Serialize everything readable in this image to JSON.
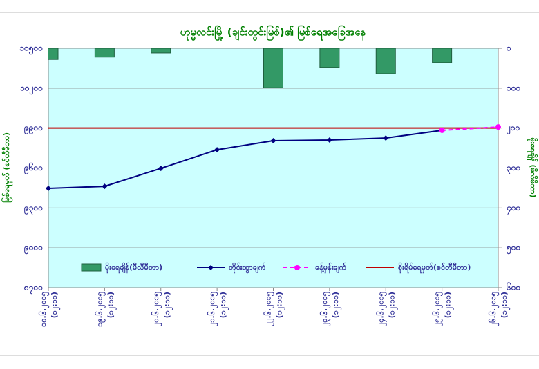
{
  "chart_data": {
    "type": "line",
    "title": "ဟုမ္မလင်းမြို့ (ချင်းတွင်းမြစ်)၏ မြစ်ရေအခြေအနေ",
    "y_label": "မြစ်ရေမှတ် (စင်တီမီတာ)",
    "y2_label": "မိုးရေချိန် (မီလီမီတာ)",
    "categories": [
      "၁၈.၆.၂၀၁၅",
      "၁၉.၆.၂၀၁၅",
      "၂၀.၆.၂၀၁၅",
      "၂၁.၆.၂၀၁၅",
      "၂၂.၆.၂၀၁၅",
      "၂၃.၆.၂၀၁၅",
      "၂၄.၆.၂၀၁၅",
      "၂၅.၆.၂၀၁၅",
      "၂၆.၆.၂၀၁၅"
    ],
    "times": [
      "(၁၂:၀၀)",
      "(၁၂:၀၀)",
      "(၁၂:၀၀)",
      "(၁၂:၀၀)",
      "(၁၂:၀၀)",
      "(၁၂:၀၀)",
      "(၁၂:၀၀)",
      "(၁၂:၀၀)",
      "(၁၂:၀၀)"
    ],
    "series": [
      {
        "name": "မိုးရေချိန်(မီလီမီတာ)",
        "type": "bar",
        "axis": "y2",
        "color": "#339966",
        "values": [
          28,
          22,
          12,
          null,
          99,
          48,
          64,
          36,
          null
        ]
      },
      {
        "name": "တိုင်းထွာချက်",
        "type": "line",
        "color": "#000080",
        "marker": "diamond",
        "values": [
          9447,
          9462,
          9597,
          9737,
          9805,
          9810,
          9825,
          9883,
          null
        ]
      },
      {
        "name": "ခန့်မှန်းချက်",
        "type": "line",
        "color": "#ff00ff",
        "marker": "circle",
        "dashed": true,
        "values": [
          null,
          null,
          null,
          null,
          null,
          null,
          null,
          9883,
          9908
        ]
      },
      {
        "name": "စိုးရိမ်ရေမှတ်(စင်တီမီတာ)",
        "type": "hline",
        "color": "#c00000",
        "value": 9900
      }
    ],
    "ylim": [
      8700,
      10500
    ],
    "yticks": [
      {
        "value": 8700,
        "label": "၈၇၀၀"
      },
      {
        "value": 9000,
        "label": "၉၀၀၀"
      },
      {
        "value": 9300,
        "label": "၉၃၀၀"
      },
      {
        "value": 9600,
        "label": "၉၆၀၀"
      },
      {
        "value": 9900,
        "label": "၉၉၀၀"
      },
      {
        "value": 10200,
        "label": "၁၀၂၀၀"
      },
      {
        "value": 10500,
        "label": "၁၀၅၀၀"
      }
    ],
    "y2lim": [
      0,
      600
    ],
    "y2_inverted": true,
    "y2ticks": [
      {
        "value": 0,
        "label": "၀"
      },
      {
        "value": 100,
        "label": "၁၀၀"
      },
      {
        "value": 200,
        "label": "၂၀၀"
      },
      {
        "value": 300,
        "label": "၃၀၀"
      },
      {
        "value": 400,
        "label": "၄၀၀"
      },
      {
        "value": 500,
        "label": "၅၀၀"
      },
      {
        "value": 600,
        "label": "၆၀၀"
      }
    ],
    "grid": true,
    "legend": "bottom"
  }
}
